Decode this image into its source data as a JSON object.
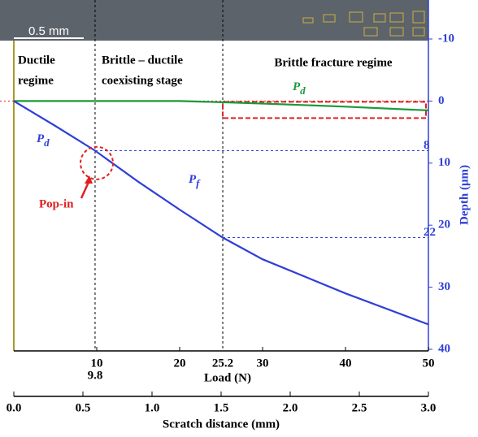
{
  "chart_data": {
    "type": "line",
    "xlabel": "Load (N)",
    "xlim": [
      0,
      50
    ],
    "xticks": [
      10,
      20,
      30,
      40,
      50
    ],
    "ylabel": "Depth (μm)",
    "ylim": [
      -10,
      40
    ],
    "yticks": [
      -10,
      0,
      10,
      20,
      30,
      40
    ],
    "y_inverted": true,
    "x2label": "Scratch distance (mm)",
    "x2lim": [
      0,
      3
    ],
    "x2ticks": [
      {
        "value": 0,
        "label": "0.0"
      },
      0.5,
      {
        "value": 1,
        "label": "1.0"
      },
      1.5,
      {
        "value": 2,
        "label": "2.0"
      },
      2.5,
      {
        "value": 3,
        "label": "3.0"
      }
    ],
    "transition_loads": [
      9.8,
      25.2
    ],
    "transition_depths": [
      8,
      22
    ],
    "series": [
      {
        "name": "P",
        "sub": "d",
        "color": "#1a9a3a",
        "x": [
          0,
          10,
          20,
          25.2,
          30,
          40,
          50
        ],
        "values": [
          0,
          0,
          0,
          0.2,
          0.4,
          0.9,
          1.5
        ]
      },
      {
        "name": "P",
        "sub": "d",
        "color": "#2f3fd8",
        "x": [
          0,
          5,
          9.8,
          15,
          20,
          25.2,
          30,
          40,
          50
        ],
        "values": [
          0,
          4,
          8,
          13,
          17.5,
          22,
          25.5,
          31,
          36
        ]
      }
    ],
    "pf_label": {
      "name": "P",
      "sub": "f"
    },
    "regions": [
      [
        "Ductile",
        "regime"
      ],
      [
        "Brittle – ductile",
        "coexisting stage"
      ],
      [
        "Brittle fracture regime"
      ]
    ],
    "annotations": {
      "pop_in": "Pop-in",
      "scale_bar": "0.5 mm"
    }
  }
}
